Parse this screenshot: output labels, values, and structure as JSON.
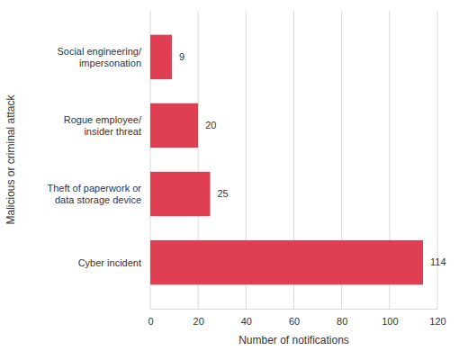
{
  "chart_data": {
    "type": "bar",
    "orientation": "horizontal",
    "x_label": "Number of notifications",
    "y_label": "Malicious or criminal attack",
    "categories": [
      "Social engineering/\nimpersonation",
      "Rogue employee/\ninsider threat",
      "Theft of paperwork or\ndata storage device",
      "Cyber incident"
    ],
    "values": [
      9,
      20,
      25,
      114
    ],
    "color": "#e03e52",
    "xlim": [
      0,
      120
    ],
    "xticks": [
      0,
      20,
      40,
      60,
      80,
      100,
      120
    ],
    "grid": true,
    "data_labels": true
  }
}
